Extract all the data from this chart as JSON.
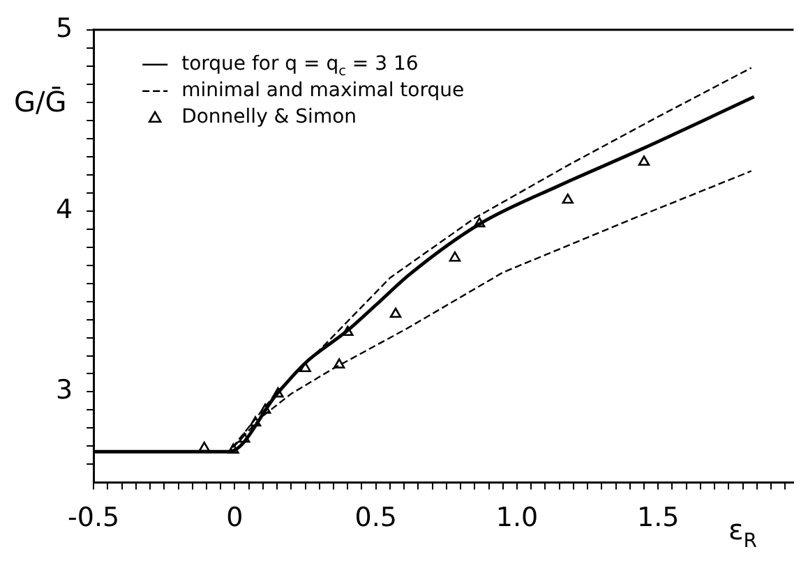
{
  "chart_data": {
    "type": "line",
    "xlabel": "ε$_{R}$",
    "ylabel": "G/Ḡ",
    "xlim": [
      -0.5,
      1.98
    ],
    "ylim": [
      2.5,
      5
    ],
    "xticks": [
      {
        "value": -0.5,
        "label": "-0.5"
      },
      {
        "value": -0.45,
        "label": null
      },
      {
        "value": -0.4,
        "label": null
      },
      {
        "value": -0.35,
        "label": null
      },
      {
        "value": -0.3,
        "label": null
      },
      {
        "value": -0.25,
        "label": null
      },
      {
        "value": -0.2,
        "label": null
      },
      {
        "value": -0.15,
        "label": null
      },
      {
        "value": -0.1,
        "label": null
      },
      {
        "value": -0.05,
        "label": null
      },
      0,
      {
        "value": 0.05,
        "label": null
      },
      {
        "value": 0.1,
        "label": null
      },
      {
        "value": 0.15,
        "label": null
      },
      {
        "value": 0.2,
        "label": null
      },
      {
        "value": 0.25,
        "label": null
      },
      {
        "value": 0.3,
        "label": null
      },
      {
        "value": 0.35,
        "label": null
      },
      {
        "value": 0.4,
        "label": null
      },
      {
        "value": 0.45,
        "label": null
      },
      0.5,
      {
        "value": 0.55,
        "label": null
      },
      {
        "value": 0.6,
        "label": null
      },
      {
        "value": 0.65,
        "label": null
      },
      {
        "value": 0.7,
        "label": null
      },
      {
        "value": 0.75,
        "label": null
      },
      {
        "value": 0.8,
        "label": null
      },
      {
        "value": 0.85,
        "label": null
      },
      {
        "value": 0.9,
        "label": null
      },
      {
        "value": 0.95,
        "label": null
      },
      {
        "value": 1,
        "label": "1.0"
      },
      {
        "value": 1.05,
        "label": null
      },
      {
        "value": 1.1,
        "label": null
      },
      {
        "value": 1.15,
        "label": null
      },
      {
        "value": 1.2,
        "label": null
      },
      {
        "value": 1.25,
        "label": null
      },
      {
        "value": 1.3,
        "label": null
      },
      {
        "value": 1.35,
        "label": null
      },
      {
        "value": 1.4,
        "label": null
      },
      {
        "value": 1.45,
        "label": null
      },
      1.5,
      {
        "value": 1.55,
        "label": null
      },
      {
        "value": 1.6,
        "label": null
      },
      {
        "value": 1.65,
        "label": null
      },
      {
        "value": 1.7,
        "label": null
      },
      {
        "value": 1.75,
        "label": null
      },
      {
        "value": 1.8,
        "label": null
      },
      {
        "value": 1.85,
        "label": null
      },
      {
        "value": 1.9,
        "label": null
      },
      {
        "value": 1.95,
        "label": null
      }
    ],
    "yticks": [
      {
        "value": 2.6,
        "label": null
      },
      {
        "value": 2.7,
        "label": null
      },
      {
        "value": 2.8,
        "label": null
      },
      {
        "value": 2.9,
        "label": null
      },
      3,
      {
        "value": 3.1,
        "label": null
      },
      {
        "value": 3.2,
        "label": null
      },
      {
        "value": 3.3,
        "label": null
      },
      {
        "value": 3.4,
        "label": null
      },
      {
        "value": 3.5,
        "label": null
      },
      {
        "value": 3.6,
        "label": null
      },
      {
        "value": 3.7,
        "label": null
      },
      {
        "value": 3.8,
        "label": null
      },
      {
        "value": 3.9,
        "label": null
      },
      4,
      {
        "value": 4.1,
        "label": null
      },
      {
        "value": 4.2,
        "label": null
      },
      {
        "value": 4.3,
        "label": null
      },
      {
        "value": 4.4,
        "label": null
      },
      {
        "value": 4.5,
        "label": null
      },
      {
        "value": 4.6,
        "label": null
      },
      {
        "value": 4.7,
        "label": null
      },
      {
        "value": 4.8,
        "label": null
      },
      {
        "value": 4.9,
        "label": null
      },
      5
    ],
    "grid": false,
    "legend": "top left",
    "series": [
      {
        "name": "torque for q = q$_{c}$ = 3 16",
        "color": "#000000",
        "type": "line",
        "line_style": "solid",
        "marker": "none",
        "x": [
          -0.5,
          -0.02,
          0.15,
          0.25,
          0.4,
          0.5,
          0.62,
          0.87,
          1.15,
          1.44,
          1.84
        ],
        "values": [
          2.67,
          2.67,
          2.99,
          3.16,
          3.34,
          3.48,
          3.65,
          3.93,
          4.14,
          4.34,
          4.63
        ]
      },
      {
        "name": "minimal and maximal torque",
        "color": "#000000",
        "type": "line",
        "line_style": "dashed",
        "marker": "none",
        "x": [
          -0.02,
          0.15,
          0.325,
          0.55,
          0.85,
          1.19,
          1.5,
          1.83
        ],
        "values": [
          2.67,
          3.0,
          3.27,
          3.63,
          3.96,
          4.26,
          4.52,
          4.79
        ]
      },
      {
        "color": "#000000",
        "type": "line",
        "line_style": "dashed",
        "marker": "none",
        "x": [
          -0.02,
          0.094,
          0.2,
          0.35,
          0.61,
          0.95,
          1.4,
          1.83
        ],
        "values": [
          2.67,
          2.86,
          2.99,
          3.13,
          3.35,
          3.66,
          3.95,
          4.22
        ]
      },
      {
        "name": "Donnelly & Simon",
        "color": "#000000",
        "type": "scatter",
        "marker": "triangle",
        "x": [
          -0.108,
          -0.005,
          0.034,
          0.073,
          0.108,
          0.153,
          0.25,
          0.37,
          0.4,
          0.57,
          0.78,
          0.867,
          1.18,
          1.45
        ],
        "values": [
          2.69,
          2.68,
          2.74,
          2.83,
          2.9,
          2.99,
          3.13,
          3.15,
          3.33,
          3.43,
          3.74,
          3.93,
          4.06,
          4.27
        ]
      }
    ]
  }
}
